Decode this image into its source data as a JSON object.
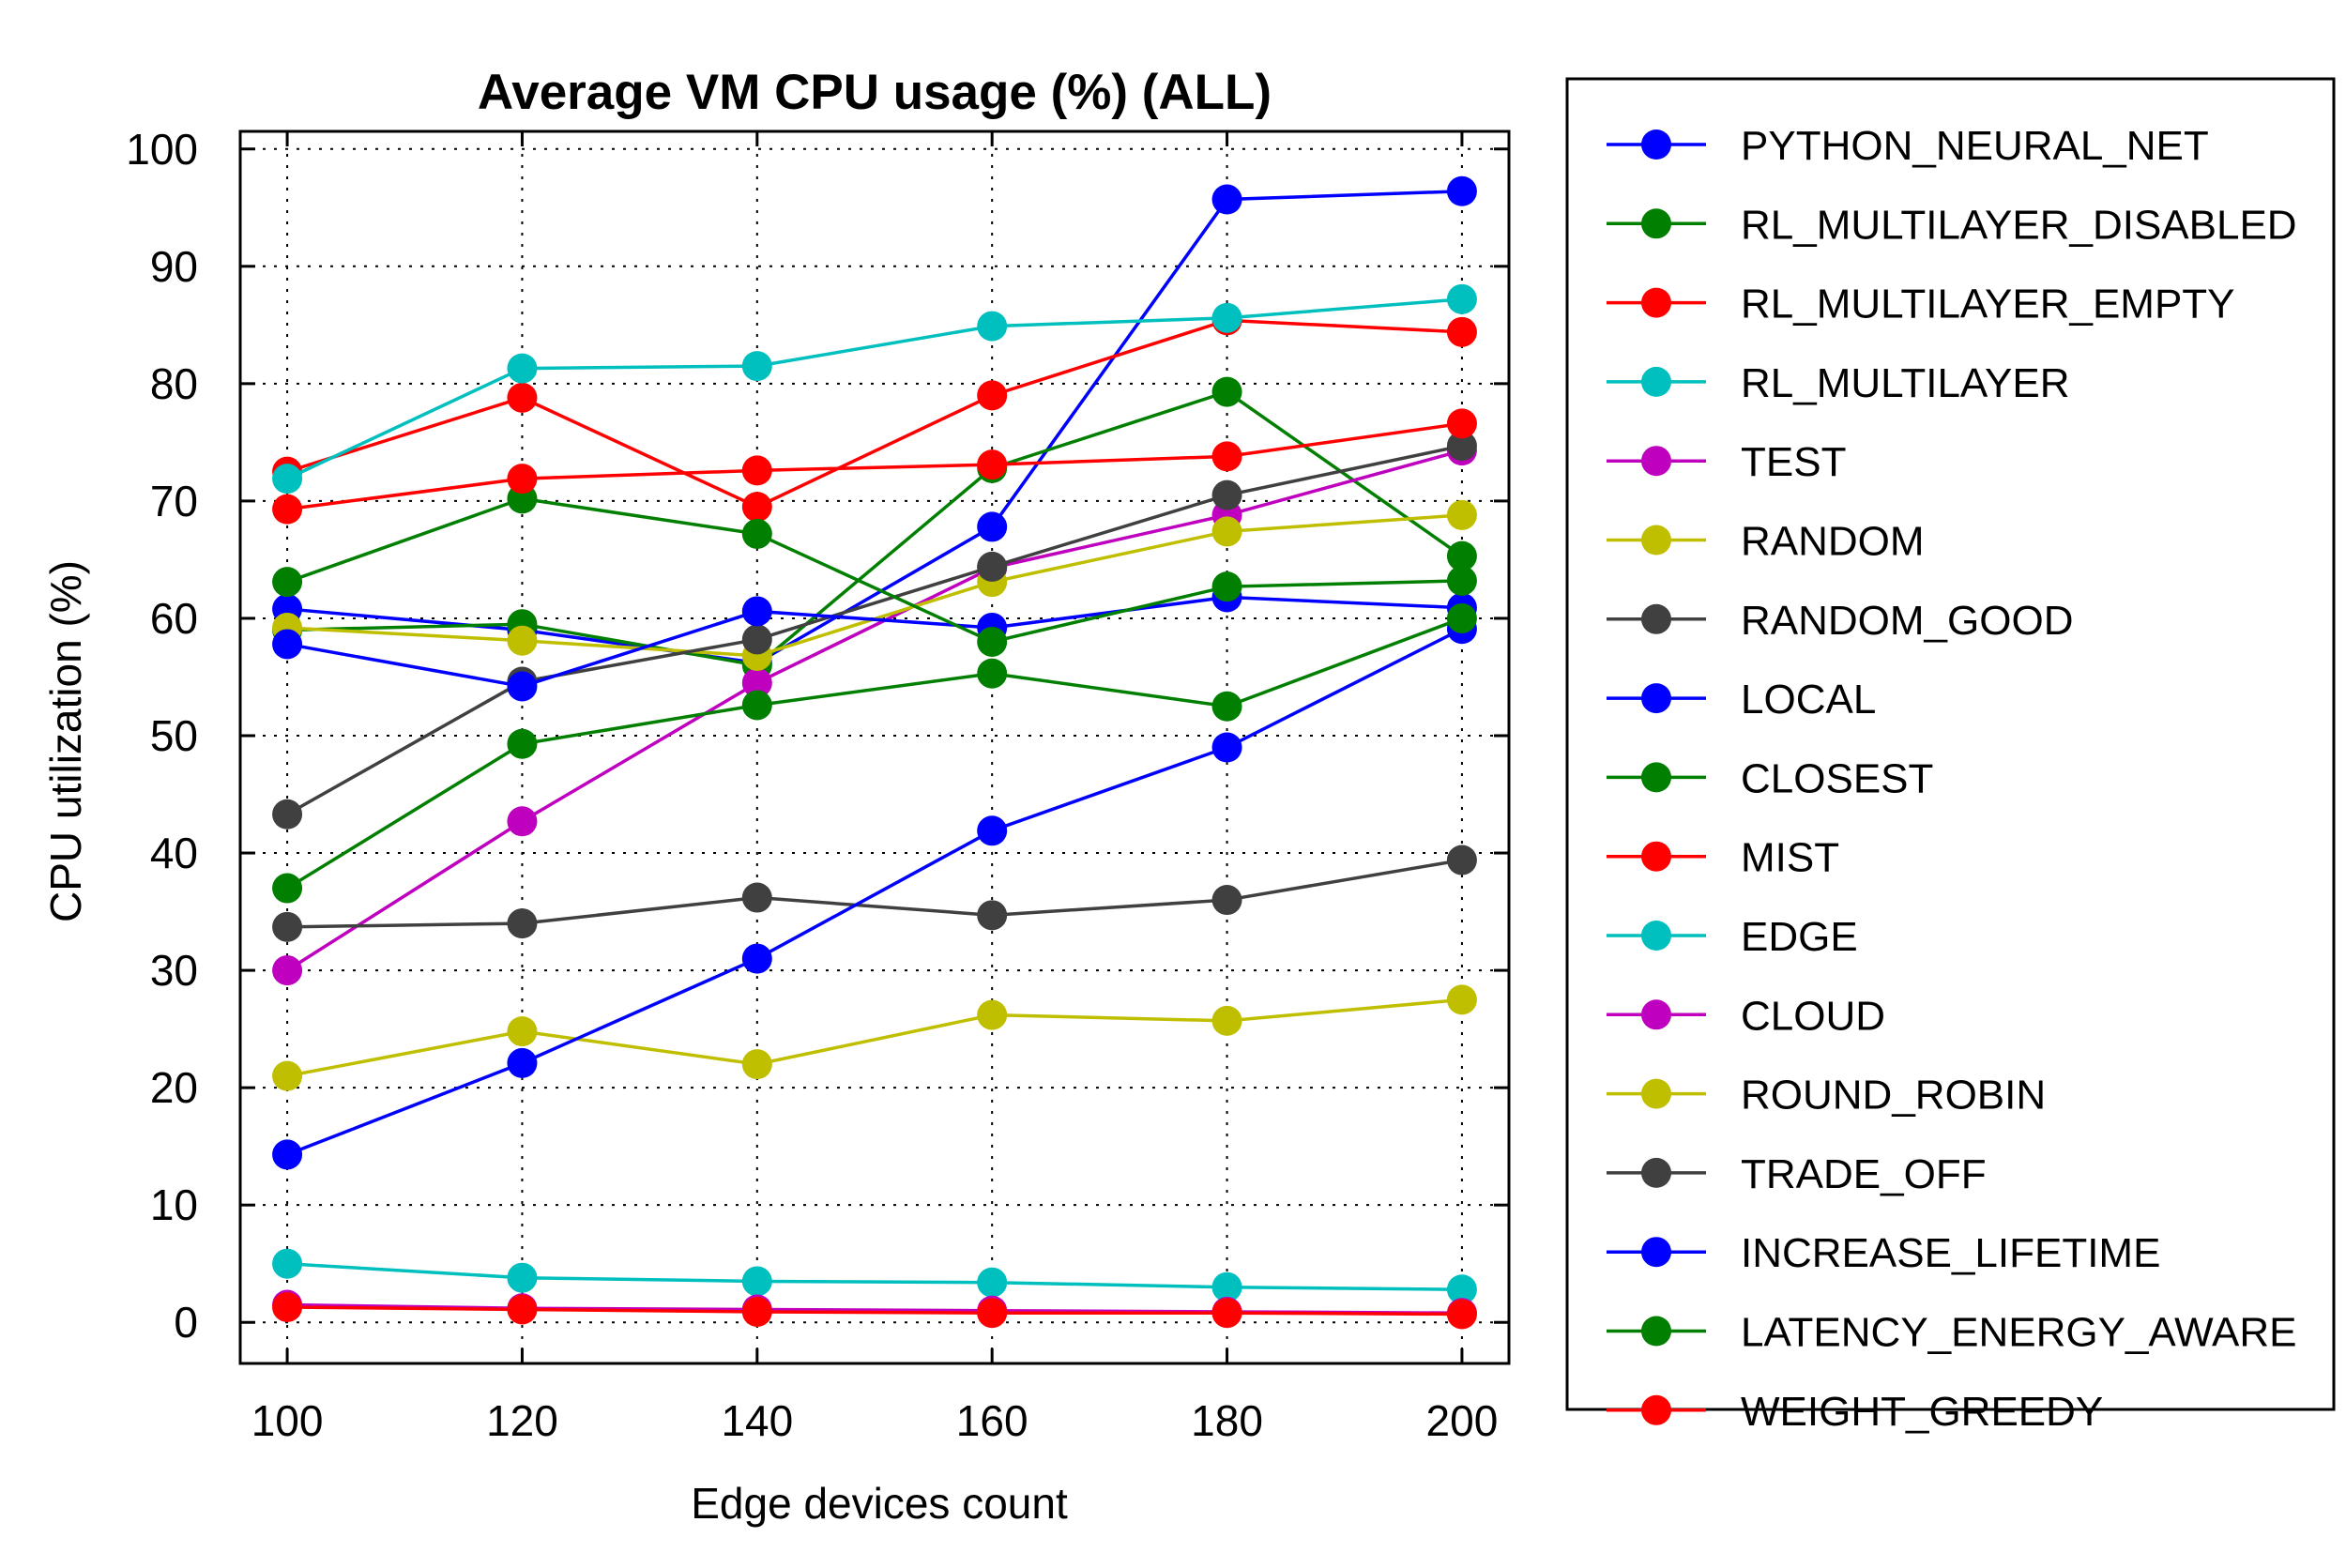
{
  "chart_data": {
    "type": "line",
    "title": "Average VM CPU usage (%) (ALL)",
    "xlabel": "Edge devices count",
    "ylabel": "CPU utilization (%)",
    "x": [
      100,
      120,
      140,
      160,
      180,
      200
    ],
    "xlim": [
      96,
      204
    ],
    "ylim": [
      -3.5,
      101.5
    ],
    "yticks": [
      0,
      10,
      20,
      30,
      40,
      50,
      60,
      70,
      80,
      90,
      100
    ],
    "grid": true,
    "legend_position": "right-outside",
    "series": [
      {
        "name": "PYTHON_NEURAL_NET",
        "color": "#0000ff",
        "values": [
          60.8,
          59.0,
          56.2,
          67.8,
          95.7,
          96.4
        ]
      },
      {
        "name": "RL_MULTILAYER_DISABLED",
        "color": "#007f00",
        "values": [
          59.0,
          59.5,
          56.0,
          72.8,
          79.3,
          65.3
        ]
      },
      {
        "name": "RL_MULTILAYER_EMPTY",
        "color": "#ff0000",
        "values": [
          72.5,
          78.8,
          69.5,
          79.0,
          85.4,
          84.4
        ]
      },
      {
        "name": "RL_MULTILAYER",
        "color": "#00bfbf",
        "values": [
          71.9,
          81.3,
          81.5,
          84.9,
          85.6,
          87.2
        ]
      },
      {
        "name": "TEST",
        "color": "#bf00bf",
        "values": [
          30.0,
          42.7,
          54.5,
          64.3,
          68.8,
          74.3
        ]
      },
      {
        "name": "RANDOM",
        "color": "#bfbf00",
        "values": [
          59.2,
          58.1,
          56.8,
          63.1,
          67.4,
          68.8
        ]
      },
      {
        "name": "RANDOM_GOOD",
        "color": "#404040",
        "values": [
          43.3,
          54.6,
          58.2,
          64.4,
          70.5,
          74.7
        ]
      },
      {
        "name": "LOCAL",
        "color": "#0000ff",
        "values": [
          57.8,
          54.2,
          60.6,
          59.2,
          61.8,
          60.9
        ]
      },
      {
        "name": "CLOSEST",
        "color": "#007f00",
        "values": [
          63.1,
          70.2,
          67.2,
          58.0,
          62.7,
          63.2
        ]
      },
      {
        "name": "MIST",
        "color": "#ff0000",
        "values": [
          69.3,
          71.9,
          72.6,
          73.1,
          73.8,
          76.6
        ]
      },
      {
        "name": "EDGE",
        "color": "#00bfbf",
        "values": [
          5.0,
          3.8,
          3.5,
          3.4,
          3.0,
          2.8
        ]
      },
      {
        "name": "CLOUD",
        "color": "#bf00bf",
        "values": [
          1.5,
          1.2,
          1.1,
          1.0,
          0.9,
          0.8
        ]
      },
      {
        "name": "ROUND_ROBIN",
        "color": "#bfbf00",
        "values": [
          21.0,
          24.8,
          22.0,
          26.2,
          25.7,
          27.5
        ]
      },
      {
        "name": "TRADE_OFF",
        "color": "#404040",
        "values": [
          33.7,
          34.0,
          36.2,
          34.7,
          36.0,
          39.4
        ]
      },
      {
        "name": "INCREASE_LIFETIME",
        "color": "#0000ff",
        "values": [
          14.3,
          22.1,
          31.0,
          41.9,
          49.0,
          59.1
        ]
      },
      {
        "name": "LATENCY_ENERGY_AWARE",
        "color": "#007f00",
        "values": [
          37.0,
          49.3,
          52.6,
          55.3,
          52.5,
          60.0
        ]
      },
      {
        "name": "WEIGHT_GREEDY",
        "color": "#ff0000",
        "values": [
          1.3,
          1.1,
          0.9,
          0.8,
          0.8,
          0.7
        ]
      }
    ]
  }
}
